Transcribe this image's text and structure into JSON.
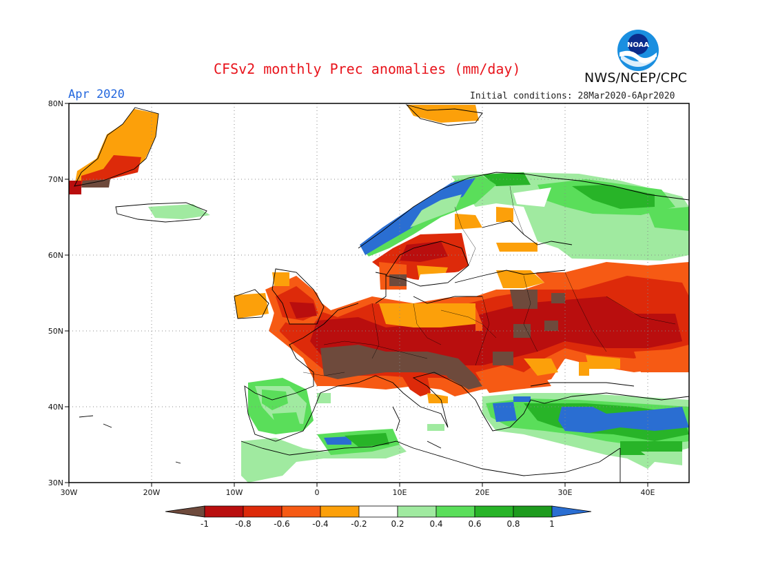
{
  "title": "CFSv2 monthly Prec anomalies (mm/day)",
  "organization": "NWS/NCEP/CPC",
  "logo_text": "NOAA",
  "month": "Apr 2020",
  "initial_conditions": "Initial conditions: 28Mar2020-6Apr2020",
  "lat_labels": [
    "80N",
    "70N",
    "60N",
    "50N",
    "40N",
    "30N"
  ],
  "lon_labels": [
    "30W",
    "20W",
    "10W",
    "0",
    "10E",
    "20E",
    "30E",
    "40E"
  ],
  "colorbar": {
    "ticks": [
      "-1",
      "-0.8",
      "-0.6",
      "-0.4",
      "-0.2",
      "0.2",
      "0.4",
      "0.6",
      "0.8",
      "1"
    ],
    "colors": [
      "#6e4a3c",
      "#b90e0e",
      "#dd2a0a",
      "#f65a14",
      "#fca00a",
      "#ffffff",
      "#a0eaa0",
      "#5ade5a",
      "#28b428",
      "#1e9b1e",
      "#2a6ed2"
    ]
  }
}
